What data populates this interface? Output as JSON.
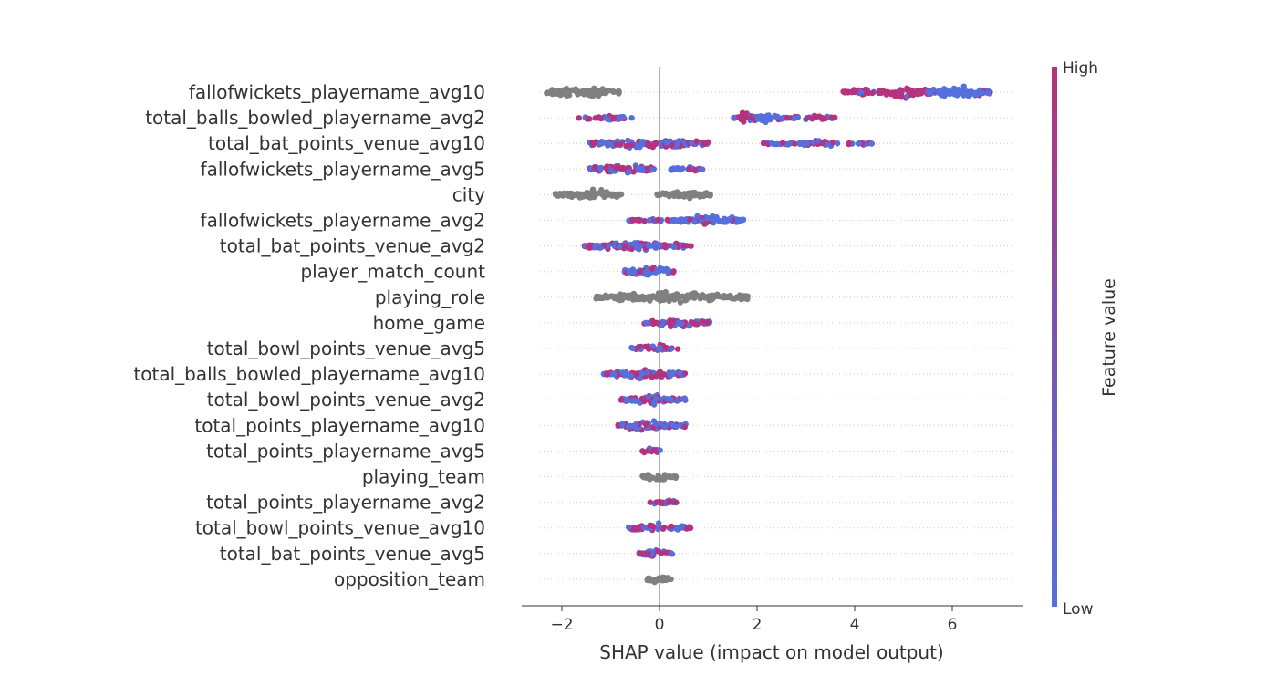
{
  "chart_data": {
    "type": "scatter",
    "subtype": "shap-beeswarm",
    "xlabel": "SHAP value (impact on model output)",
    "xlim": [
      -2.8,
      7.5
    ],
    "x_ticks": [
      -2,
      0,
      2,
      4,
      6
    ],
    "x_tick_labels": [
      "−2",
      "0",
      "2",
      "4",
      "6"
    ],
    "zero_line": 0,
    "colorbar": {
      "label": "Feature value",
      "high_label": "High",
      "low_label": "Low",
      "high_color": "#b5327e",
      "low_color": "#5570dd"
    },
    "nan_color": "#808080",
    "features": [
      {
        "name": "fallofwickets_playername_avg10",
        "clusters": [
          {
            "min": -2.35,
            "max": -0.8,
            "shade": "nan",
            "density": 1.0
          },
          {
            "min": 3.75,
            "max": 4.6,
            "shade": "high",
            "density": 0.7
          },
          {
            "min": 4.5,
            "max": 5.6,
            "shade": "high",
            "density": 1.0
          },
          {
            "min": 5.5,
            "max": 6.85,
            "shade": "low",
            "density": 1.0
          }
        ]
      },
      {
        "name": "total_balls_bowled_playername_avg2",
        "clusters": [
          {
            "min": -1.65,
            "max": -0.55,
            "shade": "mix",
            "density": 0.5
          },
          {
            "min": 1.5,
            "max": 2.1,
            "shade": "high",
            "density": 1.0
          },
          {
            "min": 2.0,
            "max": 2.6,
            "shade": "low",
            "density": 1.0
          },
          {
            "min": 2.6,
            "max": 3.65,
            "shade": "high",
            "density": 0.5
          }
        ]
      },
      {
        "name": "total_bat_points_venue_avg10",
        "clusters": [
          {
            "min": -1.45,
            "max": 1.0,
            "shade": "mix",
            "density": 1.0
          },
          {
            "min": 2.1,
            "max": 4.35,
            "shade": "mix",
            "density": 0.5
          }
        ]
      },
      {
        "name": "fallofwickets_playername_avg5",
        "clusters": [
          {
            "min": -1.45,
            "max": -0.1,
            "shade": "mix",
            "density": 1.0
          },
          {
            "min": 0.2,
            "max": 0.9,
            "shade": "low",
            "density": 0.6
          }
        ]
      },
      {
        "name": "city",
        "clusters": [
          {
            "min": -2.15,
            "max": -0.75,
            "shade": "nan",
            "density": 1.0
          },
          {
            "min": -0.05,
            "max": 1.05,
            "shade": "nan",
            "density": 0.7
          }
        ]
      },
      {
        "name": "fallofwickets_playername_avg2",
        "clusters": [
          {
            "min": -0.65,
            "max": 0.3,
            "shade": "mix",
            "density": 0.5
          },
          {
            "min": 0.3,
            "max": 1.75,
            "shade": "low",
            "density": 0.9
          }
        ]
      },
      {
        "name": "total_bat_points_venue_avg2",
        "clusters": [
          {
            "min": -1.55,
            "max": 0.65,
            "shade": "mix",
            "density": 0.9
          }
        ]
      },
      {
        "name": "player_match_count",
        "clusters": [
          {
            "min": -0.75,
            "max": 0.3,
            "shade": "low",
            "density": 0.8
          }
        ]
      },
      {
        "name": "playing_role",
        "clusters": [
          {
            "min": -1.3,
            "max": 1.85,
            "shade": "nan",
            "density": 1.0
          }
        ]
      },
      {
        "name": "home_game",
        "clusters": [
          {
            "min": -0.35,
            "max": 1.05,
            "shade": "mix",
            "density": 0.8
          }
        ]
      },
      {
        "name": "total_bowl_points_venue_avg5",
        "clusters": [
          {
            "min": -0.6,
            "max": 0.4,
            "shade": "mix",
            "density": 0.7
          }
        ]
      },
      {
        "name": "total_balls_bowled_playername_avg10",
        "clusters": [
          {
            "min": -1.15,
            "max": 0.55,
            "shade": "mix",
            "density": 0.9
          }
        ]
      },
      {
        "name": "total_bowl_points_venue_avg2",
        "clusters": [
          {
            "min": -0.8,
            "max": 0.55,
            "shade": "mix",
            "density": 0.9
          }
        ]
      },
      {
        "name": "total_points_playername_avg10",
        "clusters": [
          {
            "min": -0.85,
            "max": 0.55,
            "shade": "mix",
            "density": 0.9
          }
        ]
      },
      {
        "name": "total_points_playername_avg5",
        "clusters": [
          {
            "min": -0.35,
            "max": 0.05,
            "shade": "mix",
            "density": 0.6
          }
        ]
      },
      {
        "name": "playing_team",
        "clusters": [
          {
            "min": -0.35,
            "max": 0.35,
            "shade": "nan",
            "density": 0.8
          }
        ]
      },
      {
        "name": "total_points_playername_avg2",
        "clusters": [
          {
            "min": -0.2,
            "max": 0.35,
            "shade": "mix",
            "density": 0.7
          }
        ]
      },
      {
        "name": "total_bowl_points_venue_avg10",
        "clusters": [
          {
            "min": -0.65,
            "max": 0.65,
            "shade": "mix",
            "density": 0.8
          }
        ]
      },
      {
        "name": "total_bat_points_venue_avg5",
        "clusters": [
          {
            "min": -0.45,
            "max": 0.3,
            "shade": "mix",
            "density": 0.7
          }
        ]
      },
      {
        "name": "opposition_team",
        "clusters": [
          {
            "min": -0.3,
            "max": 0.25,
            "shade": "nan",
            "density": 0.7
          }
        ]
      }
    ]
  }
}
